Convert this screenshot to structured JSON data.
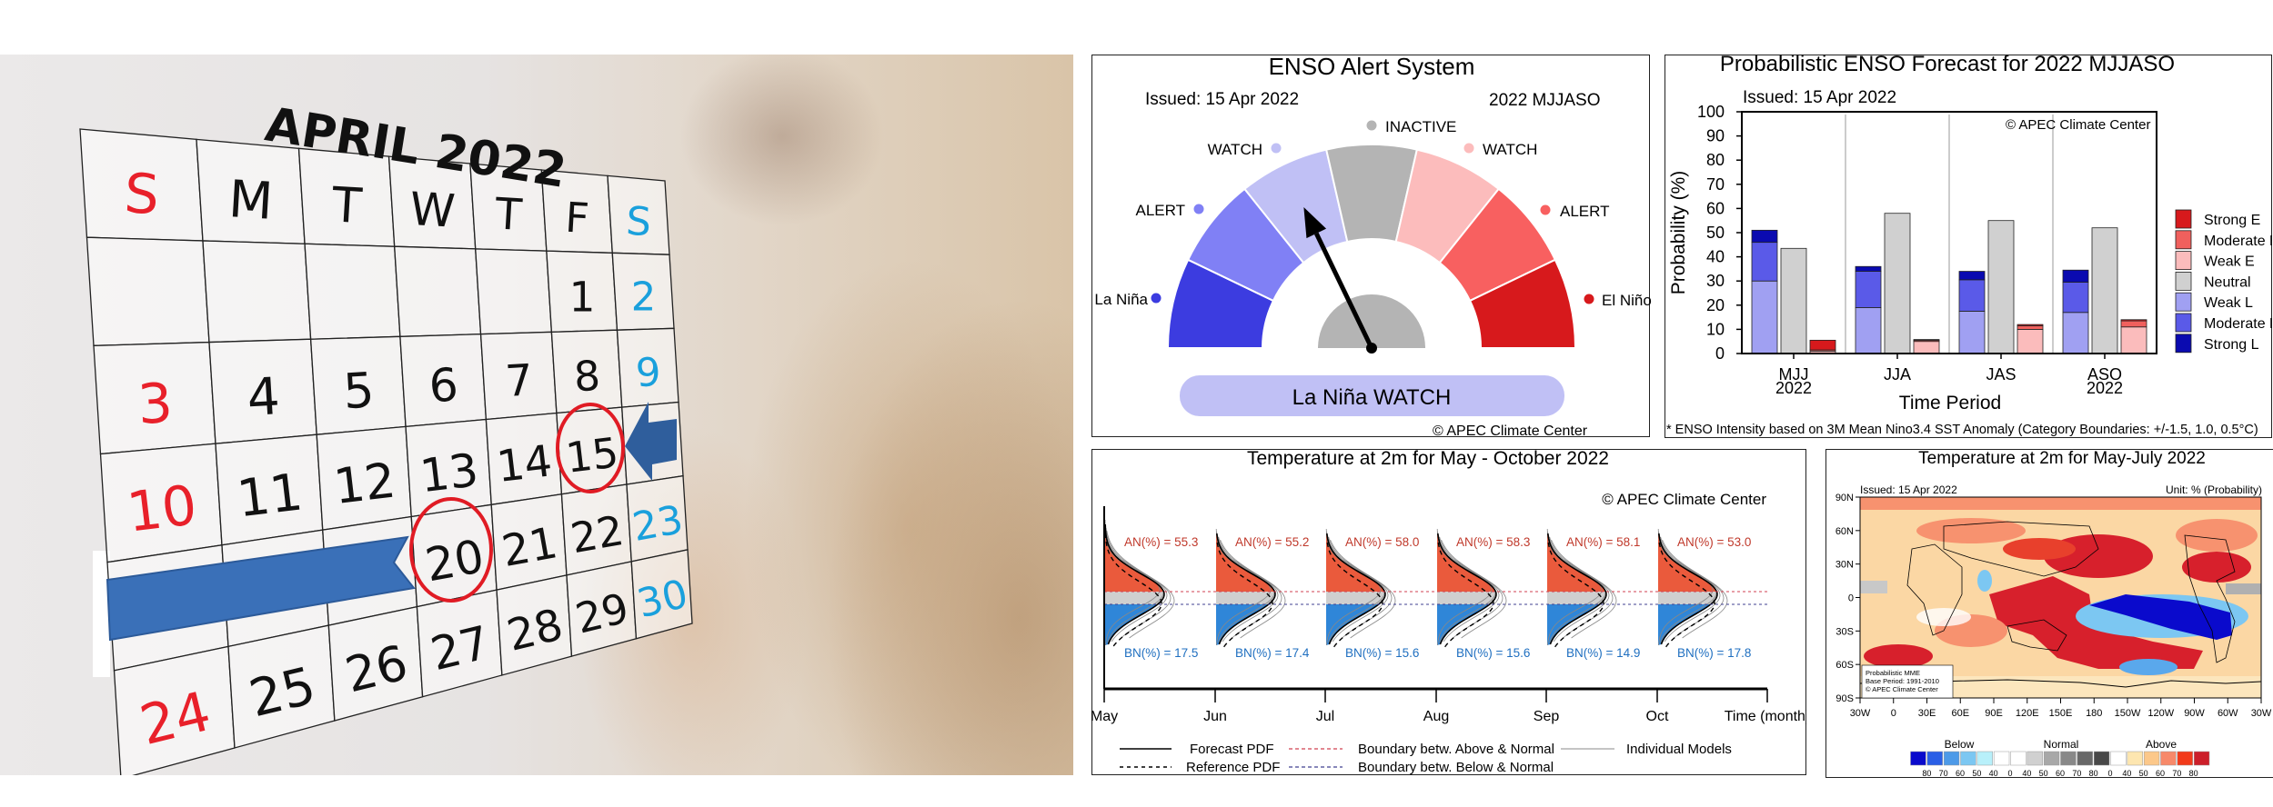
{
  "calendar": {
    "title": "APRIL 2022",
    "weekdays": [
      "S",
      "M",
      "T",
      "W",
      "T",
      "F",
      "S"
    ],
    "weeks": [
      [
        "",
        "",
        "",
        "",
        "",
        "1",
        "2"
      ],
      [
        "3",
        "4",
        "5",
        "6",
        "7",
        "8",
        "9"
      ],
      [
        "10",
        "11",
        "12",
        "13",
        "14",
        "15",
        ""
      ],
      [
        "",
        "",
        "",
        "20",
        "21",
        "22",
        "23"
      ],
      [
        "24",
        "25",
        "26",
        "27",
        "28",
        "29",
        "30"
      ]
    ],
    "circled_days": [
      "15",
      "20"
    ],
    "colors": {
      "sunday": "#e8202a",
      "saturday": "#1aa0dc",
      "text": "#111111",
      "circle": "#e01b24",
      "arrow": "#3a70b8"
    }
  },
  "chart_data": [
    {
      "type": "gauge",
      "title": "ENSO Alert System",
      "issued": "Issued: 15 Apr 2022",
      "period": "2022 MJJASO",
      "sectors": [
        {
          "label": "La Niña",
          "color": "#3c3ce0"
        },
        {
          "label": "ALERT",
          "color": "#8080f5"
        },
        {
          "label": "WATCH",
          "color": "#c0c0f5"
        },
        {
          "label": "INACTIVE",
          "color": "#b4b4b4"
        },
        {
          "label": "WATCH",
          "color": "#fcbcbc"
        },
        {
          "label": "ALERT",
          "color": "#f86060"
        },
        {
          "label": "El Niño",
          "color": "#d7191c"
        }
      ],
      "current_sector_index": 2,
      "status": "La Niña WATCH",
      "status_color": "#c0c0f5",
      "credit": "© APEC Climate Center"
    },
    {
      "type": "bar",
      "stacked": true,
      "title": "Probabilistic ENSO Forecast for 2022 MJJASO",
      "issued": "Issued: 15 Apr 2022",
      "credit": "© APEC Climate Center",
      "xlabel": "Time Period",
      "ylabel": "Probability (%)",
      "ylim": [
        0,
        100
      ],
      "yticks": [
        "0",
        "10",
        "20",
        "30",
        "40",
        "50",
        "60",
        "70",
        "80",
        "90",
        "100"
      ],
      "categories": [
        [
          "MJJ",
          "2022"
        ],
        [
          "JJA",
          ""
        ],
        [
          "JAS",
          ""
        ],
        [
          "ASO",
          "2022"
        ]
      ],
      "series": [
        {
          "name": "Strong E",
          "color": "#d7191c",
          "group": "E",
          "values": [
            4,
            0.3,
            0.5,
            0.5
          ]
        },
        {
          "name": "Moderate E",
          "color": "#f0605d",
          "group": "E",
          "values": [
            0.5,
            0.5,
            1.5,
            2.5
          ]
        },
        {
          "name": "Weak E",
          "color": "#fbbcbc",
          "group": "E",
          "values": [
            1,
            5,
            10,
            11
          ]
        },
        {
          "name": "Neutral",
          "color": "#d0d0d0",
          "group": "N",
          "values": [
            43.5,
            58,
            55,
            52
          ]
        },
        {
          "name": "Weak L",
          "color": "#a0a0f2",
          "group": "L",
          "values": [
            30,
            19,
            17.5,
            17
          ]
        },
        {
          "name": "Moderate L",
          "color": "#5a5ae8",
          "group": "L",
          "values": [
            16,
            15,
            13,
            12.5
          ]
        },
        {
          "name": "Strong L",
          "color": "#0a0ab0",
          "group": "L",
          "values": [
            5,
            2,
            3.5,
            5
          ]
        }
      ],
      "legend_position": "right",
      "footnote": "* ENSO Intensity based on 3M Mean Nino3.4 SST Anomaly (Category Boundaries: +/-1.5, 1.0, 0.5°C)"
    },
    {
      "type": "pdf",
      "title": "Temperature at 2m for May - October 2022",
      "credit": "© APEC Climate Center",
      "xlabel": "Time (month)",
      "months": [
        "May",
        "Jun",
        "Jul",
        "Aug",
        "Sep",
        "Oct"
      ],
      "an_label": "AN(%) =",
      "bn_label": "BN(%) =",
      "an": [
        "55.3",
        "55.2",
        "58.0",
        "58.3",
        "58.1",
        "53.0"
      ],
      "bn": [
        "17.5",
        "17.4",
        "15.6",
        "15.6",
        "14.9",
        "17.8"
      ],
      "colors": {
        "above": "#ea5a3c",
        "normal": "#cfcfcf",
        "below": "#2f86d8",
        "an_text": "#c0392b",
        "bn_text": "#1f6fc0"
      },
      "legend": [
        "Forecast PDF",
        "Reference PDF",
        "Boundary betw. Above & Normal",
        "Boundary betw. Below & Normal",
        "Individual Models"
      ]
    },
    {
      "type": "heatmap",
      "title": "Temperature at 2m for May-July 2022",
      "issued": "Issued: 15 Apr 2022",
      "unit": "Unit: % (Probability)",
      "lat_ticks": [
        "90N",
        "60N",
        "30N",
        "0",
        "30S",
        "60S",
        "90S"
      ],
      "lon_ticks": [
        "30W",
        "0",
        "30E",
        "60E",
        "90E",
        "120E",
        "150E",
        "180",
        "150W",
        "120W",
        "90W",
        "60W",
        "30W"
      ],
      "inset": [
        "Probabilistic MME",
        "Base Period: 1991-2010",
        "© APEC Climate Center"
      ],
      "colorbar_groups": [
        "Below",
        "Normal",
        "Above"
      ],
      "colorbar_colors": [
        "#0a0acc",
        "#2a5fe6",
        "#4d9ae8",
        "#7cc7f2",
        "#b8f0fa",
        "#ffffff",
        "#ffffff",
        "#d0d0d0",
        "#a8a8a8",
        "#888888",
        "#686868",
        "#484848",
        "#ffffff",
        "#fde6b0",
        "#fcc88a",
        "#f7896a",
        "#f23a1a",
        "#cc1f2a"
      ],
      "colorbar_labels": [
        "80",
        "70",
        "60",
        "50",
        "40",
        "0",
        "40",
        "50",
        "60",
        "70",
        "80",
        "0",
        "40",
        "50",
        "60",
        "70",
        "80"
      ]
    }
  ]
}
